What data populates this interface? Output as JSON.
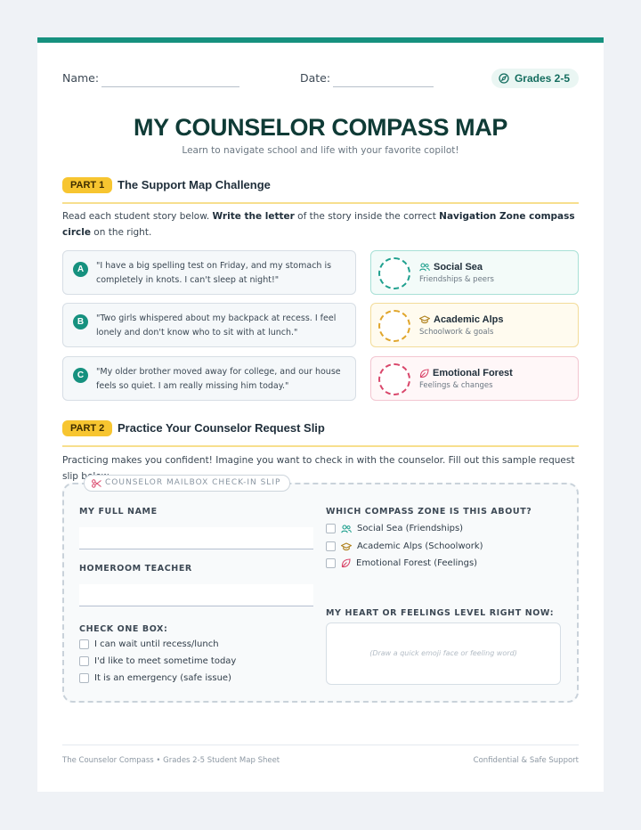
{
  "header": {
    "name_label": "Name:",
    "date_label": "Date:",
    "grades_label": "Grades 2-5"
  },
  "title": "MY COUNSELOR COMPASS MAP",
  "subtitle": "Learn to navigate school and life with your favorite copilot!",
  "part1": {
    "badge": "PART 1",
    "title": "The Support Map Challenge",
    "instructions": {
      "a": "Read each student story below. ",
      "b": "Write the letter",
      "c": " of the story inside the correct ",
      "d": "Navigation Zone compass circle",
      "e": " on the right."
    },
    "stories": [
      {
        "letter": "A",
        "text": "\"I have a big spelling test on Friday, and my stomach is completely in knots. I can't sleep at night!\""
      },
      {
        "letter": "B",
        "text": "\"Two girls whispered about my backpack at recess. I feel lonely and don't know who to sit with at lunch.\""
      },
      {
        "letter": "C",
        "text": "\"My older brother moved away for college, and our house feels so quiet. I am really missing him today.\""
      }
    ],
    "zones": [
      {
        "name": "Social Sea",
        "sub": "Friendships & peers",
        "icon": "people-icon",
        "color": "#1fa08e",
        "bg": "#f3fbf9",
        "border": "#a8e0d6"
      },
      {
        "name": "Academic Alps",
        "sub": "Schoolwork & goals",
        "icon": "graduation-cap-icon",
        "color": "#e0a52a",
        "bg": "#fffbef",
        "border": "#f3dc9a"
      },
      {
        "name": "Emotional Forest",
        "sub": "Feelings & changes",
        "icon": "leaf-icon",
        "color": "#d9466a",
        "bg": "#fff7f8",
        "border": "#f3c6d1"
      }
    ]
  },
  "part2": {
    "badge": "PART 2",
    "title": "Practice Your Counselor Request Slip",
    "instructions": "Practicing makes you confident! Imagine you want to check in with the counselor. Fill out this sample request slip below.",
    "slip": {
      "tab_label": "COUNSELOR MAILBOX CHECK-IN SLIP",
      "full_name_label": "MY FULL NAME",
      "teacher_label": "HOMEROOM TEACHER",
      "check_label": "CHECK ONE BOX:",
      "check_options": [
        "I can wait until recess/lunch",
        "I'd like to meet sometime today",
        "It is an emergency (safe issue)"
      ],
      "zone_label": "WHICH COMPASS ZONE IS THIS ABOUT?",
      "zone_options": [
        "Social Sea (Friendships)",
        "Academic Alps (Schoolwork)",
        "Emotional Forest (Feelings)"
      ],
      "feelings_label": "MY HEART OR FEELINGS LEVEL RIGHT NOW:",
      "feelings_placeholder": "(Draw a quick emoji face or feeling word)"
    }
  },
  "footer": {
    "left": "The Counselor Compass • Grades 2-5 Student Map Sheet",
    "right": "Confidential & Safe Support"
  }
}
